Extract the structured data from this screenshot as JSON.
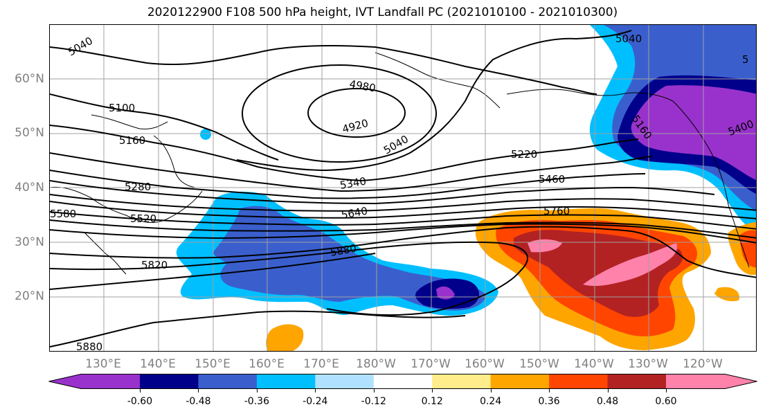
{
  "title": "2020122900 F108 500 hPa height, IVT Landfall PC (2021010100 - 2021010300)",
  "lat_labels": [
    "60°N",
    "50°N",
    "40°N",
    "30°N",
    "20°N"
  ],
  "lon_labels": [
    "130°E",
    "140°E",
    "150°E",
    "160°E",
    "170°E",
    "180°W",
    "170°W",
    "160°W",
    "150°W",
    "140°W",
    "130°W",
    "120°W"
  ],
  "contour_labels": [
    "5040",
    "5100",
    "5160",
    "5280",
    "5580",
    "5520",
    "5820",
    "5880",
    "4980",
    "4920",
    "5040",
    "5220",
    "5340",
    "5460",
    "5640",
    "5880",
    "5760",
    "5040",
    "5400",
    "5160",
    "5"
  ],
  "colorbar": {
    "ticks": [
      "-0.60",
      "-0.48",
      "-0.36",
      "-0.24",
      "-0.12",
      "0.12",
      "0.24",
      "0.36",
      "0.48",
      "0.60"
    ],
    "colors": [
      "#9932cc",
      "#00008b",
      "#3a5fcd",
      "#00bfff",
      "#b0e2ff",
      "#ffffff",
      "#ffec8b",
      "#ffa500",
      "#ff4500",
      "#b22222",
      "#ff82ab"
    ]
  },
  "colors": {
    "axis_label": "#808080",
    "gridline": "#a0a0a0",
    "contour": "#000000"
  }
}
